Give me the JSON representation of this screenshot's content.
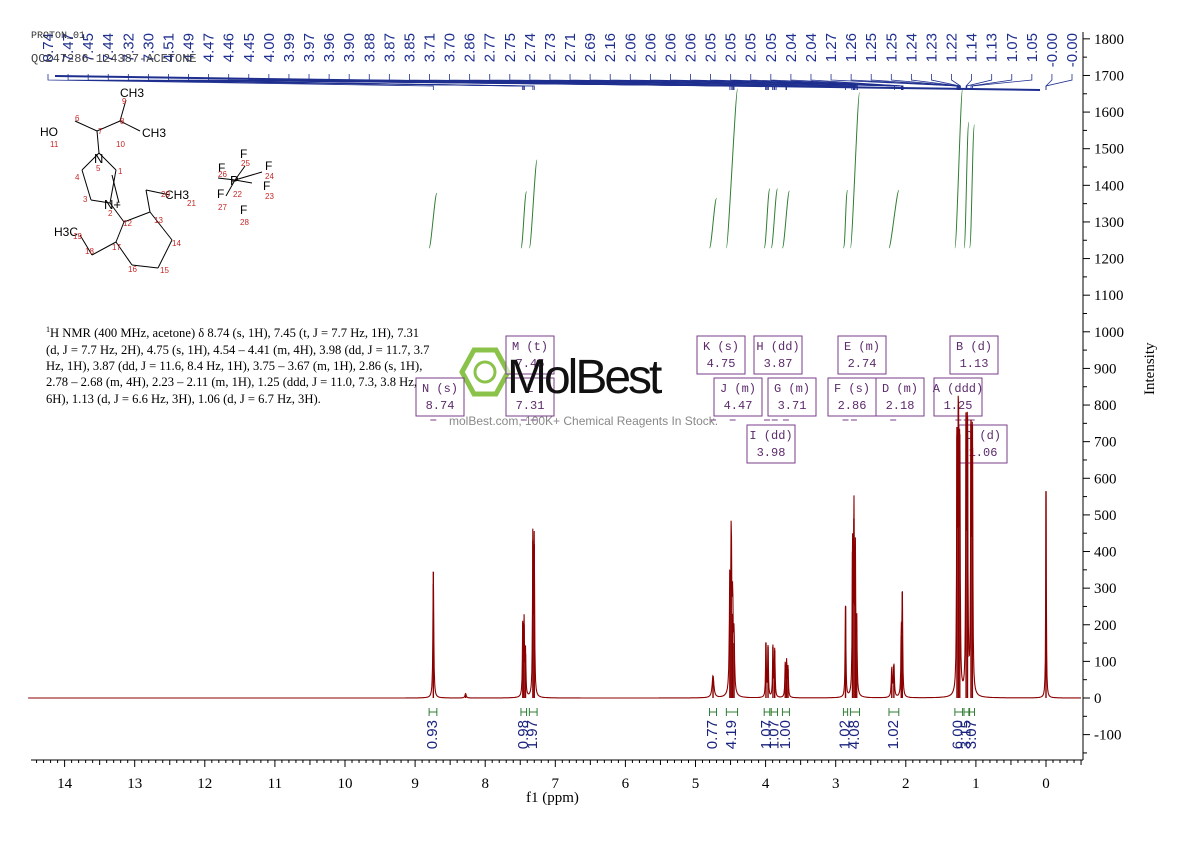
{
  "header": {
    "experiment": "PROTON_01",
    "sample": "QC247286-124387-ACETONE"
  },
  "description": {
    "nucleus_sup": "1",
    "text": "H NMR (400 MHz, acetone) δ 8.74 (s, 1H), 7.45 (t, J = 7.7 Hz, 1H), 7.31 (d, J = 7.7 Hz, 2H), 4.75 (s, 1H), 4.54 – 4.41 (m, 4H), 3.98 (dd, J = 11.7, 3.7 Hz, 1H), 3.87 (dd, J = 11.6, 8.4 Hz, 1H), 3.75 – 3.67 (m, 1H), 2.86 (s, 1H), 2.78 – 2.68 (m, 4H), 2.23 – 2.11 (m, 1H), 1.25 (ddd, J = 11.0, 7.3, 3.8 Hz, 6H), 1.13 (d, J = 6.6 Hz, 3H), 1.06 (d, J = 6.7 Hz, 3H)."
  },
  "watermark": {
    "logo": "MolBest",
    "tagline": "molBest.com, 100K+ Chemical Reagents In Stock."
  },
  "structure": {
    "labels": {
      "ch3_top": "CH3",
      "ch3_right": "CH3",
      "ho": "HO",
      "ch3_20": "CH3",
      "h3c": "H3C",
      "n5": "N",
      "n2": "N+",
      "p": "P",
      "f": "F"
    },
    "atom_numbers": [
      "1",
      "2",
      "3",
      "4",
      "5",
      "6",
      "7",
      "8",
      "9",
      "10",
      "11",
      "12",
      "13",
      "14",
      "15",
      "16",
      "17",
      "18",
      "19",
      "20",
      "21",
      "22",
      "23",
      "24",
      "25",
      "26",
      "27",
      "28"
    ]
  },
  "chart_data": {
    "type": "line",
    "title": "",
    "xlabel": "f1 (ppm)",
    "ylabel": "Intensity",
    "xlim": [
      14.5,
      -0.5
    ],
    "xticks": [
      "14",
      "13",
      "12",
      "11",
      "10",
      "9",
      "8",
      "7",
      "6",
      "5",
      "4",
      "3",
      "2",
      "1",
      "0"
    ],
    "ylim": [
      -170,
      1830
    ],
    "yticks": [
      "1800",
      "1700",
      "1600",
      "1500",
      "1400",
      "1300",
      "1200",
      "1100",
      "1000",
      "900",
      "800",
      "700",
      "600",
      "500",
      "400",
      "300",
      "200",
      "100",
      "0",
      "-100"
    ],
    "peaks": [
      {
        "ppm": 8.74,
        "height": 345,
        "width": 0.007
      },
      {
        "ppm": 8.28,
        "height": 12,
        "width": 0.01
      },
      {
        "ppm": 7.464,
        "height": 205,
        "width": 0.006
      },
      {
        "ppm": 7.445,
        "height": 200,
        "width": 0.006
      },
      {
        "ppm": 7.425,
        "height": 120,
        "width": 0.006
      },
      {
        "ppm": 7.32,
        "height": 430,
        "width": 0.006
      },
      {
        "ppm": 7.3,
        "height": 420,
        "width": 0.006
      },
      {
        "ppm": 4.75,
        "height": 60,
        "width": 0.015
      },
      {
        "ppm": 4.51,
        "height": 300,
        "width": 0.008
      },
      {
        "ppm": 4.49,
        "height": 420,
        "width": 0.008
      },
      {
        "ppm": 4.47,
        "height": 230,
        "width": 0.008
      },
      {
        "ppm": 4.45,
        "height": 150,
        "width": 0.008
      },
      {
        "ppm": 3.995,
        "height": 150,
        "width": 0.006
      },
      {
        "ppm": 3.965,
        "height": 140,
        "width": 0.006
      },
      {
        "ppm": 3.895,
        "height": 140,
        "width": 0.006
      },
      {
        "ppm": 3.87,
        "height": 130,
        "width": 0.006
      },
      {
        "ppm": 3.72,
        "height": 90,
        "width": 0.006
      },
      {
        "ppm": 3.7,
        "height": 95,
        "width": 0.006
      },
      {
        "ppm": 3.68,
        "height": 80,
        "width": 0.006
      },
      {
        "ppm": 2.86,
        "height": 250,
        "width": 0.006
      },
      {
        "ppm": 2.76,
        "height": 400,
        "width": 0.006
      },
      {
        "ppm": 2.74,
        "height": 490,
        "width": 0.006
      },
      {
        "ppm": 2.72,
        "height": 380,
        "width": 0.006
      },
      {
        "ppm": 2.7,
        "height": 190,
        "width": 0.006
      },
      {
        "ppm": 2.2,
        "height": 80,
        "width": 0.008
      },
      {
        "ppm": 2.17,
        "height": 90,
        "width": 0.008
      },
      {
        "ppm": 2.05,
        "height": 290,
        "width": 0.006
      },
      {
        "ppm": 2.065,
        "height": 170,
        "width": 0.006
      },
      {
        "ppm": 1.27,
        "height": 740,
        "width": 0.006
      },
      {
        "ppm": 1.25,
        "height": 800,
        "width": 0.006
      },
      {
        "ppm": 1.23,
        "height": 720,
        "width": 0.006
      },
      {
        "ppm": 1.14,
        "height": 780,
        "width": 0.006
      },
      {
        "ppm": 1.12,
        "height": 770,
        "width": 0.006
      },
      {
        "ppm": 1.07,
        "height": 760,
        "width": 0.006
      },
      {
        "ppm": 1.05,
        "height": 745,
        "width": 0.006
      },
      {
        "ppm": 0.0,
        "height": 565,
        "width": 0.005
      }
    ],
    "peak_labels": [
      "8.74",
      "7.47",
      "7.45",
      "7.44",
      "7.32",
      "7.30",
      "4.51",
      "4.49",
      "4.47",
      "4.46",
      "4.45",
      "4.00",
      "3.99",
      "3.97",
      "3.96",
      "3.90",
      "3.88",
      "3.87",
      "3.85",
      "3.71",
      "3.70",
      "2.86",
      "2.77",
      "2.75",
      "2.74",
      "2.73",
      "2.71",
      "2.69",
      "2.16",
      "2.06",
      "2.06",
      "2.06",
      "2.06",
      "2.05",
      "2.05",
      "2.05",
      "2.05",
      "2.04",
      "2.04",
      "1.27",
      "1.26",
      "1.25",
      "1.25",
      "1.24",
      "1.23",
      "1.22",
      "1.14",
      "1.13",
      "1.07",
      "1.05",
      "-0.00",
      "-0.00"
    ],
    "integrals": [
      {
        "from": 8.8,
        "to": 8.69,
        "value": "0.93"
      },
      {
        "from": 7.49,
        "to": 7.41,
        "value": "0.98"
      },
      {
        "from": 7.37,
        "to": 7.26,
        "value": "1.97"
      },
      {
        "from": 4.8,
        "to": 4.7,
        "value": "0.77"
      },
      {
        "from": 4.56,
        "to": 4.4,
        "value": "4.19"
      },
      {
        "from": 4.02,
        "to": 3.94,
        "value": "1.07"
      },
      {
        "from": 3.92,
        "to": 3.83,
        "value": "1.07"
      },
      {
        "from": 3.76,
        "to": 3.66,
        "value": "1.00"
      },
      {
        "from": 2.89,
        "to": 2.83,
        "value": "1.02"
      },
      {
        "from": 2.79,
        "to": 2.66,
        "value": "4.08"
      },
      {
        "from": 2.24,
        "to": 2.1,
        "value": "1.02"
      },
      {
        "from": 1.3,
        "to": 1.19,
        "value": "6.00"
      },
      {
        "from": 1.17,
        "to": 1.1,
        "value": "3.15"
      },
      {
        "from": 1.09,
        "to": 1.02,
        "value": "3.07"
      }
    ],
    "multiplets": [
      {
        "id": "N",
        "type": "(s)",
        "shift": "8.74"
      },
      {
        "id": "M",
        "type": "(t)",
        "shift": "7.45"
      },
      {
        "id": "L",
        "type": "",
        "shift": "7.31"
      },
      {
        "id": "K",
        "type": "(s)",
        "shift": "4.75"
      },
      {
        "id": "J",
        "type": "(m)",
        "shift": "4.47"
      },
      {
        "id": "I",
        "type": "(dd)",
        "shift": "3.98"
      },
      {
        "id": "H",
        "type": "(dd)",
        "shift": "3.87"
      },
      {
        "id": "G",
        "type": "(m)",
        "shift": "3.71"
      },
      {
        "id": "F",
        "type": "(s)",
        "shift": "2.86"
      },
      {
        "id": "E",
        "type": "(m)",
        "shift": "2.74"
      },
      {
        "id": "D",
        "type": "(m)",
        "shift": "2.18"
      },
      {
        "id": "A",
        "type": "(ddd)",
        "shift": "1.25"
      },
      {
        "id": "B",
        "type": "(d)",
        "shift": "1.13"
      },
      {
        "id": "C",
        "type": "(d)",
        "shift": "1.06"
      }
    ],
    "colors": {
      "spectrum": "#8b0000",
      "label_lines": "#1f2f8f",
      "integral": "#2e7d32",
      "multiplet_box": "#7a3e8a",
      "logo": "#8bc34a"
    }
  }
}
